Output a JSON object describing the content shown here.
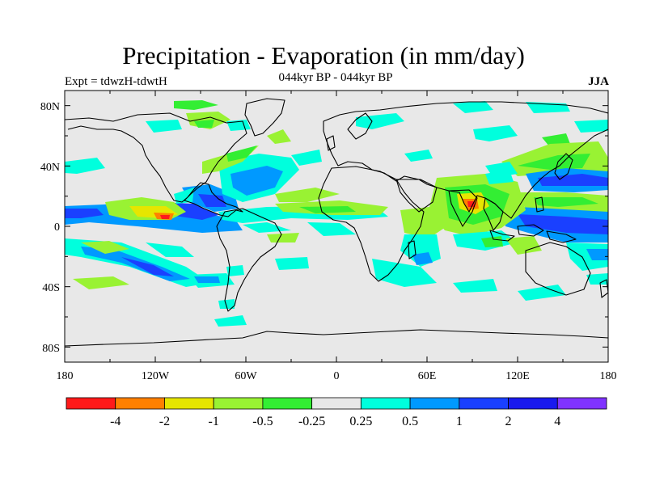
{
  "title": "Precipitation - Evaporation (in mm/day)",
  "subtitle": "044kyr BP - 044kyr BP",
  "left_label": "Expt = tdwzH-tdwtH",
  "right_label": "JJA",
  "map": {
    "background": "#e8e8e8",
    "lat_ticks": [
      "80N",
      "40N",
      "0",
      "40S",
      "80S"
    ],
    "lon_ticks": [
      "180",
      "120W",
      "60W",
      "0",
      "60E",
      "120E",
      "180"
    ]
  },
  "colorbar": {
    "colors": [
      "#ff1a1a",
      "#ff8000",
      "#e6e600",
      "#99f233",
      "#33ee33",
      "#e8e8e8",
      "#00ffdd",
      "#0099ff",
      "#1a40ff",
      "#1a1aee",
      "#8033ff"
    ],
    "labels": [
      "-4",
      "-2",
      "-1",
      "-0.5",
      "-0.25",
      "0.25",
      "0.5",
      "1",
      "2",
      "4"
    ]
  }
}
